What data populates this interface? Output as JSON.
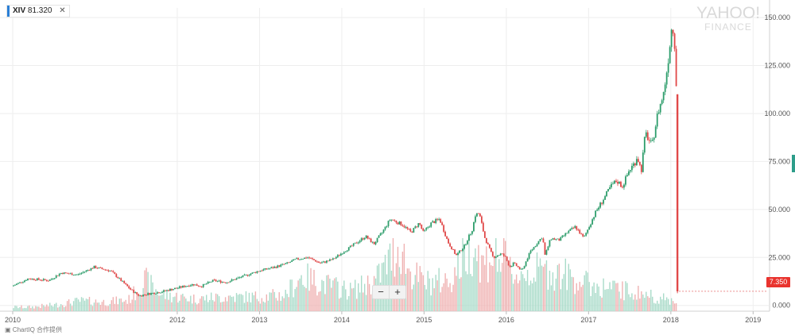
{
  "symbol_tag": {
    "symbol": "XIV",
    "value": "81.320",
    "close_icon": "close-icon",
    "accent": "#2a7fd6"
  },
  "logo": {
    "line1": "YAHOO!",
    "line2": "FINANCE"
  },
  "zoom": {
    "minus": "−",
    "plus": "+"
  },
  "last_price": {
    "label": "7.350",
    "color": "#e9332e"
  },
  "credit": {
    "icon": "chartiq-icon",
    "text": "ChartIQ 合作提供"
  },
  "colors": {
    "up": "#2d9d6b",
    "down": "#e04848",
    "vol_up": "#a9dbc9",
    "vol_down": "#efb2b2",
    "grid": "#eeeeee"
  },
  "chart_data": {
    "type": "candlestick",
    "title": "",
    "xlabel": "",
    "ylabel": "",
    "x_ticks": [
      "2010",
      "2012",
      "2013",
      "2014",
      "2015",
      "2016",
      "2017",
      "2018",
      "2019"
    ],
    "x_tick_years": [
      2010,
      2012,
      2013,
      2014,
      2015,
      2016,
      2017,
      2018,
      2019
    ],
    "y_ticks": [
      "150.000",
      "125.000",
      "100.000",
      "75.000",
      "50.000",
      "25.000",
      "0.000"
    ],
    "y_tick_values": [
      150,
      125,
      100,
      75,
      50,
      25,
      0
    ],
    "xlim": [
      2010.0,
      2019.2
    ],
    "ylim": [
      -3,
      155
    ],
    "grid": true,
    "price_series": {
      "x": [
        2010.0,
        2010.2,
        2010.45,
        2010.6,
        2010.8,
        2011.0,
        2011.2,
        2011.3,
        2011.45,
        2011.55,
        2011.65,
        2011.8,
        2012.0,
        2012.2,
        2012.3,
        2012.45,
        2012.6,
        2012.8,
        2013.0,
        2013.2,
        2013.35,
        2013.45,
        2013.6,
        2013.75,
        2013.9,
        2014.0,
        2014.1,
        2014.2,
        2014.3,
        2014.4,
        2014.5,
        2014.6,
        2014.75,
        2014.85,
        2014.95,
        2015.0,
        2015.1,
        2015.2,
        2015.3,
        2015.4,
        2015.5,
        2015.6,
        2015.63,
        2015.68,
        2015.75,
        2015.85,
        2015.95,
        2016.0,
        2016.05,
        2016.1,
        2016.2,
        2016.3,
        2016.45,
        2016.48,
        2016.55,
        2016.65,
        2016.75,
        2016.85,
        2016.95,
        2017.1,
        2017.2,
        2017.28,
        2017.35,
        2017.42,
        2017.5,
        2017.58,
        2017.6,
        2017.65,
        2017.7,
        2017.78,
        2017.85,
        2017.92,
        2017.97,
        2018.02,
        2018.05,
        2018.08,
        2018.1
      ],
      "close": [
        10,
        14,
        13,
        17,
        16,
        20,
        18,
        14,
        8,
        5,
        6,
        7,
        9,
        11,
        10,
        13,
        12,
        15,
        18,
        20,
        22,
        24,
        25,
        22,
        24,
        27,
        30,
        33,
        36,
        32,
        38,
        45,
        42,
        38,
        43,
        38,
        43,
        45,
        33,
        26,
        31,
        40,
        47,
        48,
        35,
        25,
        27,
        25,
        20,
        22,
        18,
        28,
        36,
        26,
        35,
        34,
        38,
        41,
        35,
        49,
        56,
        62,
        65,
        62,
        70,
        75,
        78,
        70,
        90,
        83,
        100,
        110,
        125,
        145,
        143,
        110,
        7.35
      ]
    },
    "volume_series": {
      "note_scale": "relative",
      "x": [
        2010.2,
        2010.5,
        2010.8,
        2011.1,
        2011.4,
        2011.6,
        2011.8,
        2012.2,
        2012.6,
        2013.0,
        2013.3,
        2013.5,
        2013.8,
        2014.1,
        2014.4,
        2014.7,
        2014.8,
        2015.0,
        2015.3,
        2015.6,
        2015.7,
        2015.8,
        2015.95,
        2016.1,
        2016.4,
        2016.7,
        2017.0,
        2017.3,
        2017.6,
        2017.9,
        2018.05,
        2018.1
      ],
      "values": [
        4,
        6,
        10,
        9,
        11,
        30,
        16,
        12,
        14,
        14,
        16,
        34,
        26,
        20,
        30,
        65,
        40,
        28,
        30,
        68,
        45,
        55,
        50,
        35,
        40,
        36,
        26,
        22,
        18,
        12,
        10,
        30
      ]
    }
  }
}
